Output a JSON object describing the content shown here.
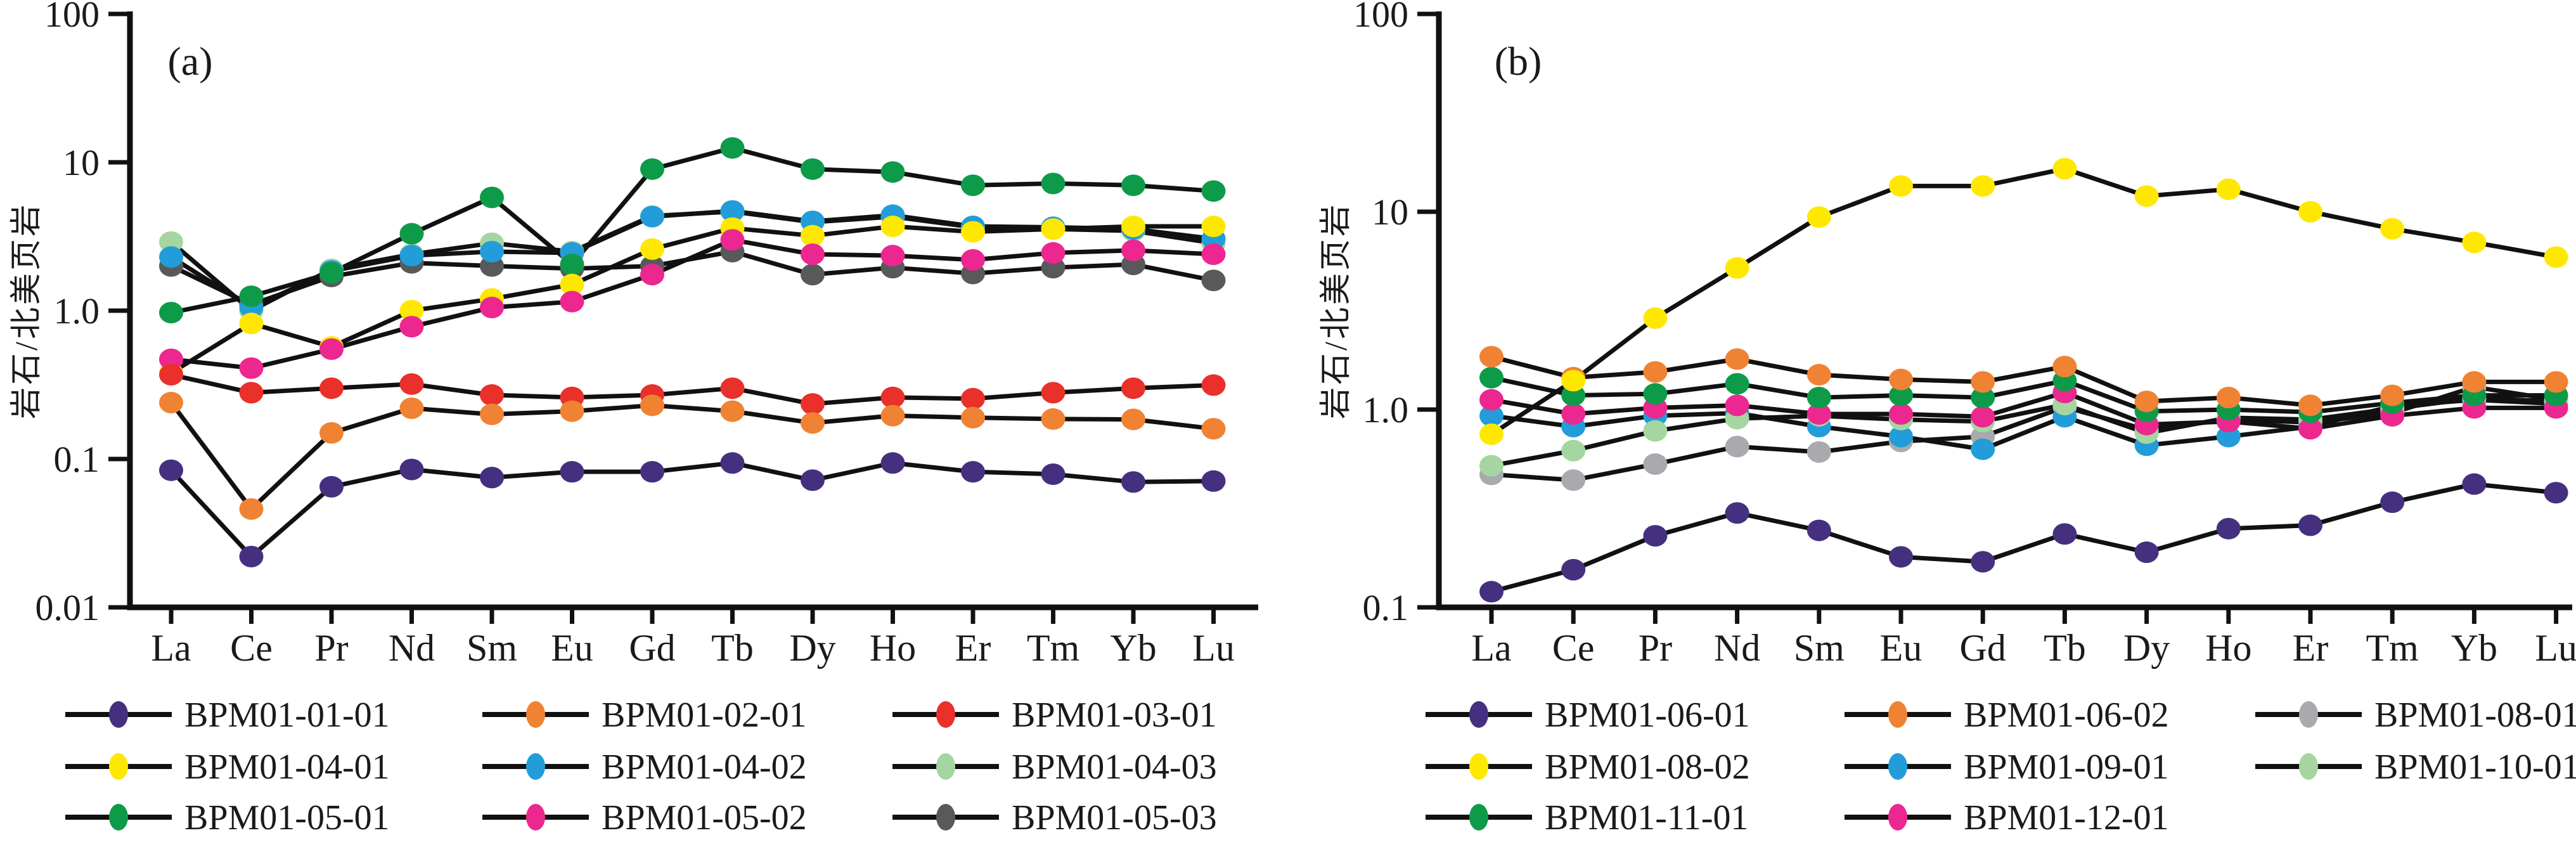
{
  "figure": {
    "background": "#ffffff",
    "line_color": "#111111"
  },
  "chart_data": [
    {
      "type": "line",
      "panel_label": "(a)",
      "ylabel": "岩石/北美页岩",
      "x_categories": [
        "La",
        "Ce",
        "Pr",
        "Nd",
        "Sm",
        "Eu",
        "Gd",
        "Tb",
        "Dy",
        "Ho",
        "Er",
        "Tm",
        "Yb",
        "Lu"
      ],
      "y_scale": "log",
      "ylim": [
        0.01,
        100
      ],
      "y_tick_labels": [
        "100",
        "10",
        "1.0",
        "0.1",
        "0.01"
      ],
      "y_tick_values": [
        100,
        10,
        1.0,
        0.1,
        0.01
      ],
      "grid": false,
      "legend_position": "below",
      "series": [
        {
          "name": "BPM01-01-01",
          "color": "#45307F",
          "values": [
            0.084,
            0.022,
            0.065,
            0.085,
            0.075,
            0.082,
            0.082,
            0.094,
            0.072,
            0.094,
            0.082,
            0.079,
            0.07,
            0.071
          ]
        },
        {
          "name": "BPM01-02-01",
          "color": "#F08233",
          "values": [
            0.24,
            0.046,
            0.15,
            0.22,
            0.2,
            0.21,
            0.23,
            0.21,
            0.175,
            0.196,
            0.19,
            0.186,
            0.185,
            0.16
          ]
        },
        {
          "name": "BPM01-03-01",
          "color": "#E9302A",
          "values": [
            0.37,
            0.28,
            0.3,
            0.32,
            0.27,
            0.26,
            0.27,
            0.3,
            0.235,
            0.26,
            0.255,
            0.28,
            0.3,
            0.315
          ]
        },
        {
          "name": "BPM01-04-01",
          "color": "#FFE800",
          "values": [
            0.38,
            0.82,
            0.57,
            1.0,
            1.2,
            1.5,
            2.6,
            3.6,
            3.2,
            3.7,
            3.4,
            3.55,
            3.7,
            3.7
          ]
        },
        {
          "name": "BPM01-04-02",
          "color": "#229DD9",
          "values": [
            2.3,
            1.05,
            1.85,
            2.35,
            2.5,
            2.45,
            4.3,
            4.7,
            4.0,
            4.4,
            3.7,
            3.65,
            3.55,
            3.05
          ]
        },
        {
          "name": "BPM01-04-03",
          "color": "#A5D6A1",
          "values": [
            2.9,
            1.0,
            1.9,
            2.4,
            2.85,
            2.5,
            4.35,
            4.65,
            3.95,
            4.3,
            3.65,
            3.55,
            3.45,
            2.85
          ]
        },
        {
          "name": "BPM01-05-01",
          "color": "#0E9B49",
          "values": [
            0.97,
            1.25,
            1.8,
            3.3,
            5.8,
            2.05,
            9.0,
            12.5,
            9.0,
            8.6,
            7.0,
            7.2,
            7.0,
            6.4
          ]
        },
        {
          "name": "BPM01-05-02",
          "color": "#EC2790",
          "values": [
            0.47,
            0.41,
            0.55,
            0.78,
            1.05,
            1.15,
            1.75,
            3.0,
            2.4,
            2.35,
            2.2,
            2.45,
            2.55,
            2.4
          ]
        },
        {
          "name": "BPM01-05-03",
          "color": "#58595B",
          "values": [
            2.0,
            1.1,
            1.7,
            2.1,
            2.0,
            1.92,
            2.0,
            2.5,
            1.75,
            1.95,
            1.78,
            1.95,
            2.05,
            1.6
          ]
        }
      ]
    },
    {
      "type": "line",
      "panel_label": "(b)",
      "ylabel": "岩石/北美页岩",
      "x_categories": [
        "La",
        "Ce",
        "Pr",
        "Nd",
        "Sm",
        "Eu",
        "Gd",
        "Tb",
        "Dy",
        "Ho",
        "Er",
        "Tm",
        "Yb",
        "Lu"
      ],
      "y_scale": "log",
      "ylim": [
        0.1,
        100
      ],
      "y_tick_labels": [
        "100",
        "10",
        "1.0",
        "0.1"
      ],
      "y_tick_values": [
        100,
        10,
        1.0,
        0.1
      ],
      "grid": false,
      "legend_position": "below",
      "series": [
        {
          "name": "BPM01-06-01",
          "color": "#45307F",
          "values": [
            0.12,
            0.155,
            0.23,
            0.3,
            0.245,
            0.18,
            0.17,
            0.235,
            0.19,
            0.25,
            0.26,
            0.34,
            0.42,
            0.38
          ]
        },
        {
          "name": "BPM01-06-02",
          "color": "#F08233",
          "values": [
            1.85,
            1.45,
            1.55,
            1.8,
            1.5,
            1.42,
            1.38,
            1.65,
            1.1,
            1.15,
            1.05,
            1.18,
            1.38,
            1.38
          ]
        },
        {
          "name": "BPM01-08-01",
          "color": "#A8AAAD",
          "values": [
            0.47,
            0.44,
            0.53,
            0.65,
            0.61,
            0.69,
            0.73,
            1.03,
            0.79,
            0.89,
            0.86,
            0.96,
            1.3,
            1.12
          ]
        },
        {
          "name": "BPM01-08-02",
          "color": "#FFE800",
          "values": [
            0.75,
            1.4,
            2.9,
            5.2,
            9.4,
            13.5,
            13.5,
            16.5,
            12.0,
            13.0,
            10.0,
            8.2,
            7.0,
            5.9
          ]
        },
        {
          "name": "BPM01-09-01",
          "color": "#229DD9",
          "values": [
            0.93,
            0.82,
            0.93,
            0.96,
            0.82,
            0.73,
            0.63,
            0.92,
            0.66,
            0.73,
            0.82,
            1.04,
            1.12,
            1.07
          ]
        },
        {
          "name": "BPM01-10-01",
          "color": "#A5D6A1",
          "values": [
            0.52,
            0.62,
            0.78,
            0.9,
            0.93,
            0.89,
            0.87,
            1.06,
            0.76,
            0.91,
            0.89,
            1.01,
            1.14,
            1.1
          ]
        },
        {
          "name": "BPM01-11-01",
          "color": "#0E9B49",
          "values": [
            1.45,
            1.18,
            1.2,
            1.35,
            1.15,
            1.18,
            1.15,
            1.4,
            0.98,
            1.0,
            0.97,
            1.08,
            1.18,
            1.18
          ]
        },
        {
          "name": "BPM01-12-01",
          "color": "#EC2790",
          "values": [
            1.12,
            0.95,
            1.02,
            1.05,
            0.95,
            0.95,
            0.92,
            1.22,
            0.84,
            0.87,
            0.8,
            0.93,
            1.02,
            1.02
          ]
        }
      ]
    }
  ]
}
